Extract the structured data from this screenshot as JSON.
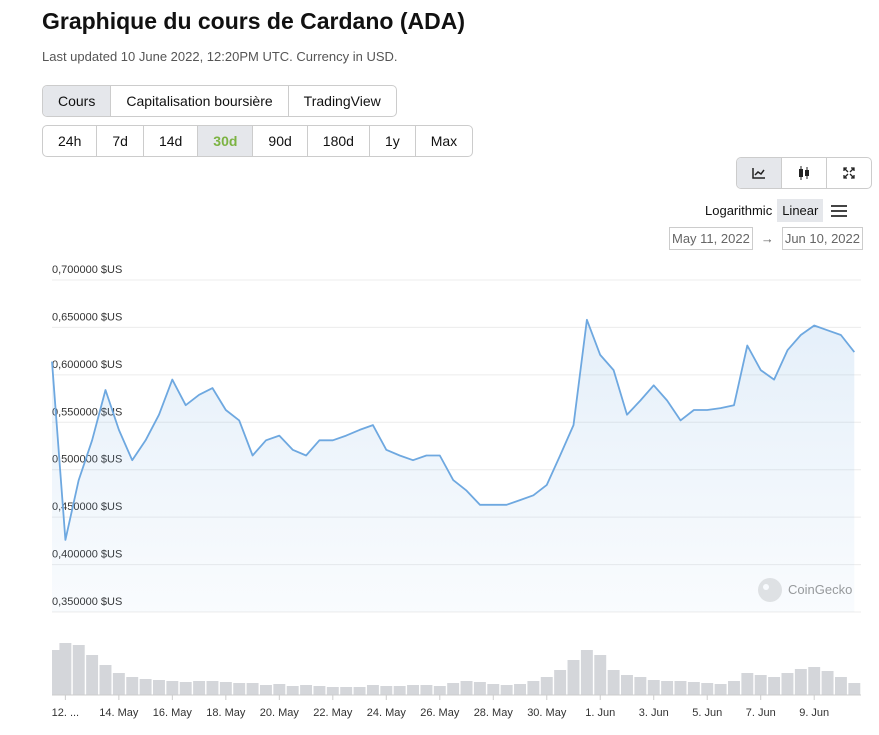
{
  "header": {
    "title": "Graphique du cours de Cardano (ADA)",
    "subtitle": "Last updated 10 June 2022, 12:20PM UTC. Currency in USD."
  },
  "tabs": [
    "Cours",
    "Capitalisation boursière",
    "TradingView"
  ],
  "ranges": [
    "24h",
    "7d",
    "14d",
    "30d",
    "90d",
    "180d",
    "1y",
    "Max"
  ],
  "scale_options": [
    "Logarithmic",
    "Linear"
  ],
  "date_range": {
    "from": "May 11, 2022",
    "to": "Jun 10, 2022"
  },
  "watermark": "CoinGecko",
  "chart_data": {
    "type": "line",
    "x": [
      "2022-05-11T12:00",
      "2022-05-12T00:00",
      "2022-05-12T12:00",
      "2022-05-13T00:00",
      "2022-05-13T12:00",
      "2022-05-14T00:00",
      "2022-05-14T12:00",
      "2022-05-15T00:00",
      "2022-05-15T12:00",
      "2022-05-16T00:00",
      "2022-05-16T12:00",
      "2022-05-17T00:00",
      "2022-05-17T12:00",
      "2022-05-18T00:00",
      "2022-05-18T12:00",
      "2022-05-19T00:00",
      "2022-05-19T12:00",
      "2022-05-20T00:00",
      "2022-05-20T12:00",
      "2022-05-21T00:00",
      "2022-05-21T12:00",
      "2022-05-22T00:00",
      "2022-05-22T12:00",
      "2022-05-23T00:00",
      "2022-05-23T12:00",
      "2022-05-24T00:00",
      "2022-05-24T12:00",
      "2022-05-25T00:00",
      "2022-05-25T12:00",
      "2022-05-26T00:00",
      "2022-05-26T12:00",
      "2022-05-27T00:00",
      "2022-05-27T12:00",
      "2022-05-28T00:00",
      "2022-05-28T12:00",
      "2022-05-29T00:00",
      "2022-05-29T12:00",
      "2022-05-30T00:00",
      "2022-05-30T12:00",
      "2022-05-31T00:00",
      "2022-05-31T12:00",
      "2022-06-01T00:00",
      "2022-06-01T12:00",
      "2022-06-02T00:00",
      "2022-06-02T12:00",
      "2022-06-03T00:00",
      "2022-06-03T12:00",
      "2022-06-04T00:00",
      "2022-06-04T12:00",
      "2022-06-05T00:00",
      "2022-06-05T12:00",
      "2022-06-06T00:00",
      "2022-06-06T12:00",
      "2022-06-07T00:00",
      "2022-06-07T12:00",
      "2022-06-08T00:00",
      "2022-06-08T12:00",
      "2022-06-09T00:00",
      "2022-06-09T12:00",
      "2022-06-10T00:00",
      "2022-06-10T12:00"
    ],
    "series": [
      {
        "color": "#6ea8e0",
        "values": [
          0.614,
          0.426,
          0.489,
          0.531,
          0.584,
          0.542,
          0.51,
          0.531,
          0.558,
          0.595,
          0.568,
          0.579,
          0.586,
          0.563,
          0.552,
          0.515,
          0.531,
          0.536,
          0.521,
          0.515,
          0.531,
          0.531,
          0.536,
          0.542,
          0.547,
          0.521,
          0.515,
          0.51,
          0.515,
          0.515,
          0.489,
          0.478,
          0.463,
          0.463,
          0.463,
          0.468,
          0.473,
          0.484,
          0.515,
          0.547,
          0.658,
          0.621,
          0.605,
          0.558,
          0.573,
          0.589,
          0.573,
          0.552,
          0.563,
          0.563,
          0.565,
          0.568,
          0.631,
          0.605,
          0.595,
          0.626,
          0.642,
          0.652,
          0.647,
          0.642,
          0.624
        ]
      }
    ],
    "volume": {
      "color": "#d4d6da",
      "ylim": [
        0,
        3
      ],
      "values": [
        2.25,
        2.6,
        2.5,
        2.0,
        1.5,
        1.1,
        0.9,
        0.8,
        0.75,
        0.7,
        0.65,
        0.7,
        0.7,
        0.65,
        0.6,
        0.6,
        0.5,
        0.55,
        0.45,
        0.5,
        0.45,
        0.4,
        0.4,
        0.4,
        0.5,
        0.45,
        0.45,
        0.5,
        0.5,
        0.45,
        0.6,
        0.7,
        0.65,
        0.55,
        0.5,
        0.55,
        0.7,
        0.9,
        1.25,
        1.75,
        2.25,
        2.0,
        1.25,
        1.0,
        0.9,
        0.75,
        0.7,
        0.7,
        0.65,
        0.6,
        0.55,
        0.7,
        1.1,
        1.0,
        0.9,
        1.1,
        1.3,
        1.4,
        1.2,
        0.9,
        0.6
      ]
    },
    "xlim": [
      "2022-05-11T12:00",
      "2022-06-10T18:00"
    ],
    "xticks": [
      {
        "value": "2022-05-12T00:00",
        "label": "12. ..."
      },
      {
        "value": "2022-05-14T00:00",
        "label": "14. May"
      },
      {
        "value": "2022-05-16T00:00",
        "label": "16. May"
      },
      {
        "value": "2022-05-18T00:00",
        "label": "18. May"
      },
      {
        "value": "2022-05-20T00:00",
        "label": "20. May"
      },
      {
        "value": "2022-05-22T00:00",
        "label": "22. May"
      },
      {
        "value": "2022-05-24T00:00",
        "label": "24. May"
      },
      {
        "value": "2022-05-26T00:00",
        "label": "26. May"
      },
      {
        "value": "2022-05-28T00:00",
        "label": "28. May"
      },
      {
        "value": "2022-05-30T00:00",
        "label": "30. May"
      },
      {
        "value": "2022-06-01T00:00",
        "label": "1. Jun"
      },
      {
        "value": "2022-06-03T00:00",
        "label": "3. Jun"
      },
      {
        "value": "2022-06-05T00:00",
        "label": "5. Jun"
      },
      {
        "value": "2022-06-07T00:00",
        "label": "7. Jun"
      },
      {
        "value": "2022-06-09T00:00",
        "label": "9. Jun"
      }
    ],
    "ylim": [
      0.35,
      0.7
    ],
    "yticks": [
      {
        "value": 0.35,
        "label": "0,350000 $US"
      },
      {
        "value": 0.4,
        "label": "0,400000 $US"
      },
      {
        "value": 0.45,
        "label": "0,450000 $US"
      },
      {
        "value": 0.5,
        "label": "0,500000 $US"
      },
      {
        "value": 0.55,
        "label": "0,550000 $US"
      },
      {
        "value": 0.6,
        "label": "0,600000 $US"
      },
      {
        "value": 0.65,
        "label": "0,650000 $US"
      },
      {
        "value": 0.7,
        "label": "0,700000 $US"
      }
    ],
    "grid": true
  }
}
